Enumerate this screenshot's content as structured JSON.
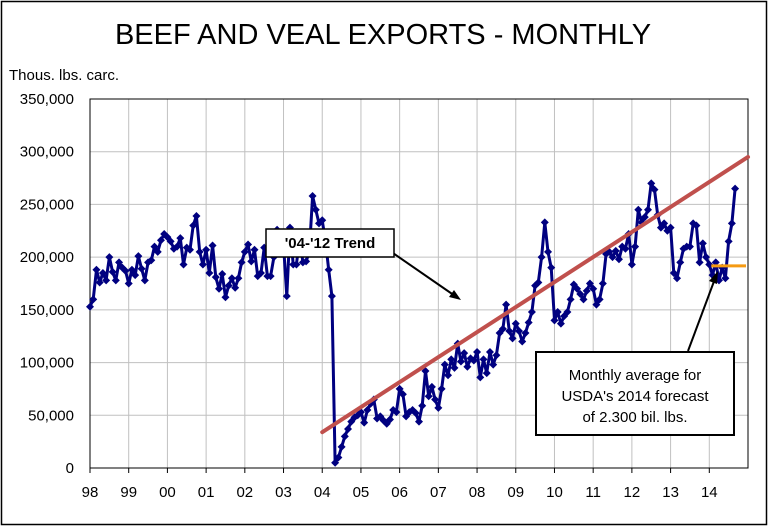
{
  "chart_data": {
    "type": "line",
    "title": "BEEF AND VEAL EXPORTS - MONTHLY",
    "ylabel": "Thous. lbs. carc.",
    "ylim": [
      0,
      350000
    ],
    "yticks": [
      "0",
      "50,000",
      "100,000",
      "150,000",
      "200,000",
      "250,000",
      "300,000",
      "350,000"
    ],
    "xlim": [
      1998,
      2015
    ],
    "xticks": [
      "98",
      "99",
      "00",
      "01",
      "02",
      "03",
      "04",
      "05",
      "06",
      "07",
      "08",
      "09",
      "10",
      "11",
      "12",
      "13",
      "14"
    ],
    "grid": true,
    "colors": {
      "series": "#000080",
      "trend": "#c0504d",
      "forecast": "#f59a12"
    },
    "series": [
      {
        "start_year": 1998,
        "start_month": 1,
        "values": [
          153000,
          160000,
          188000,
          176000,
          185000,
          178000,
          200000,
          186000,
          178000,
          195000,
          190000,
          187000,
          175000,
          188000,
          183000,
          201000,
          189000,
          178000,
          195000,
          197000,
          210000,
          205000,
          216000,
          222000,
          219000,
          215000,
          208000,
          210000,
          218000,
          193000,
          209000,
          207000,
          230000,
          239000,
          205000,
          193000,
          207000,
          185000,
          211000,
          181000,
          170000,
          184000,
          162000,
          173000,
          180000,
          171000,
          180000,
          195000,
          205000,
          212000,
          196000,
          207000,
          182000,
          185000,
          209000,
          182000,
          182000,
          200000,
          226000,
          219000,
          212000,
          163000,
          228000,
          193000,
          193000,
          218000,
          195000,
          196000,
          205000,
          258000,
          245000,
          232000,
          235000,
          215000,
          188000,
          163000,
          5000,
          10000,
          20000,
          30000,
          37000,
          44000,
          48000,
          50000,
          53000,
          43000,
          55000,
          61000,
          65000,
          47000,
          49000,
          45000,
          42000,
          46000,
          55000,
          53000,
          75000,
          70000,
          49000,
          53000,
          55000,
          52000,
          44000,
          59000,
          92000,
          68000,
          77000,
          65000,
          57000,
          75000,
          98000,
          88000,
          103000,
          95000,
          118000,
          101000,
          109000,
          96000,
          104000,
          102000,
          110000,
          86000,
          103000,
          90000,
          110000,
          98000,
          107000,
          128000,
          132000,
          155000,
          130000,
          123000,
          137000,
          130000,
          120000,
          128000,
          138000,
          148000,
          173000,
          176000,
          200000,
          233000,
          205000,
          190000,
          140000,
          148000,
          137000,
          144000,
          148000,
          160000,
          174000,
          170000,
          165000,
          160000,
          168000,
          175000,
          170000,
          155000,
          160000,
          175000,
          203000,
          205000,
          200000,
          206000,
          198000,
          210000,
          208000,
          222000,
          193000,
          210000,
          245000,
          233000,
          238000,
          245000,
          270000,
          264000,
          240000,
          228000,
          232000,
          225000,
          228000,
          185000,
          180000,
          195000,
          208000,
          210000,
          210000,
          232000,
          230000,
          195000,
          213000,
          200000,
          193000,
          183000,
          195000,
          178000,
          190000,
          180000,
          215000,
          232000,
          265000
        ]
      }
    ],
    "trend": {
      "name": "'04-'12 Trend",
      "from": [
        2004.0,
        34000
      ],
      "to": [
        2015.0,
        295000
      ]
    },
    "forecast": {
      "value": 191667,
      "from": 2014.0,
      "to": 2015.0
    },
    "annotations": {
      "trend_label": "'04-'12 Trend",
      "note_lines": [
        "Monthly average for",
        "USDA's 2014 forecast",
        "of 2.300 bil. lbs."
      ]
    }
  }
}
